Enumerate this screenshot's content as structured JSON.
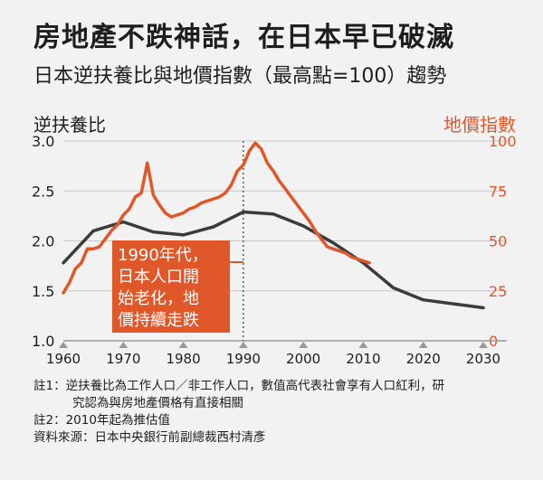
{
  "title": "房地產不跌神話，在日本早已破滅",
  "subtitle": "日本逆扶養比與地價指數（最高點=100）趨勢",
  "colors": {
    "dependency": "#3b3b3b",
    "land": "#e0572a",
    "annotation_bg": "#e0572a",
    "axis": "#888888"
  },
  "chart_data": {
    "type": "line",
    "ylabel_left": "逆扶養比",
    "ylabel_right": "地價指數",
    "xlim": [
      1958,
      2032
    ],
    "ylim_left": [
      1.0,
      3.0
    ],
    "ylim_right": [
      0,
      100
    ],
    "x_ticks": [
      1960,
      1970,
      1980,
      1990,
      2000,
      2010,
      2020,
      2030
    ],
    "x_tick_labels": [
      "1960",
      "1970",
      "1980",
      "1990",
      "2000",
      "2010",
      "2020",
      "2030"
    ],
    "y_ticks_left": [
      "1.0",
      "1.5",
      "2.0",
      "2.5",
      "3.0"
    ],
    "y_ticks_right": [
      "0",
      "25",
      "50",
      "75",
      "100"
    ],
    "grid": "horizontal",
    "reference_line_x": 1990,
    "annotation": [
      "1990年代，",
      "日本人口開",
      "始老化，地",
      "價持續走跌"
    ],
    "series": [
      {
        "axis": "left",
        "x": [
          1960,
          1965,
          1970,
          1975,
          1980,
          1985,
          1990,
          1995,
          2000,
          2005,
          2010,
          2015,
          2020,
          2025,
          2030
        ],
        "values": [
          1.78,
          2.1,
          2.19,
          2.09,
          2.06,
          2.14,
          2.29,
          2.27,
          2.15,
          1.98,
          1.78,
          1.53,
          1.41,
          1.37,
          1.33
        ]
      },
      {
        "axis": "right",
        "x": [
          1960,
          1961,
          1962,
          1963,
          1964,
          1965,
          1966,
          1967,
          1968,
          1969,
          1970,
          1971,
          1972,
          1973,
          1974,
          1975,
          1976,
          1977,
          1978,
          1979,
          1980,
          1981,
          1982,
          1983,
          1984,
          1985,
          1986,
          1987,
          1988,
          1989,
          1990,
          1991,
          1992,
          1993,
          1994,
          1995,
          1996,
          1997,
          1998,
          1999,
          2000,
          2001,
          2002,
          2003,
          2004,
          2005,
          2006,
          2007,
          2008,
          2009,
          2010,
          2011
        ],
        "values": [
          24,
          29,
          36,
          39,
          46,
          46,
          47,
          51,
          55,
          58,
          63,
          66,
          72,
          74,
          89,
          73,
          68,
          64,
          62,
          63,
          64,
          66,
          67,
          69,
          70,
          71,
          72,
          74,
          78,
          85,
          88,
          95,
          99,
          96,
          89,
          85,
          80,
          76,
          72,
          68,
          64,
          60,
          55,
          51,
          47,
          46,
          45,
          44,
          42,
          41,
          40,
          39
        ]
      }
    ]
  },
  "notes": [
    "註1：逆扶養比為工作人口／非工作人口，數值高代表社會享有人口紅利，研",
    "究認為與房地產價格有直接相關",
    "註2：2010年起為推估值",
    "資料來源：日本中央銀行前副總裁西村清彥"
  ]
}
